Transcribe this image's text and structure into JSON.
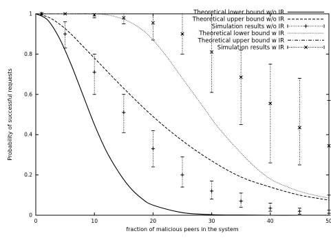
{
  "chart_data": {
    "type": "line",
    "title": "",
    "xlabel": "fraction of malicious peers in the system",
    "ylabel": "Probability of successful requests",
    "xlim": [
      0,
      50
    ],
    "ylim": [
      0,
      1
    ],
    "x_ticks": [
      0,
      10,
      20,
      30,
      40,
      50
    ],
    "x_tick_labels": [
      "0",
      "10",
      "20",
      "30",
      "40",
      "50"
    ],
    "y_ticks": [
      0,
      0.2,
      0.4,
      0.6,
      0.8,
      1
    ],
    "y_tick_labels": [
      "0",
      "0.2",
      "0.4",
      "0.6",
      "0.8",
      "1"
    ],
    "grid": false,
    "legend_position": "top-right",
    "series": [
      {
        "name": "Theoretical lower bound w/o IR",
        "kind": "line",
        "style": "solid",
        "x": [
          0,
          2,
          4,
          6,
          8,
          10,
          12,
          14,
          16,
          18,
          20,
          25,
          30,
          35,
          40,
          45,
          50
        ],
        "y": [
          1,
          0.97,
          0.88,
          0.75,
          0.6,
          0.45,
          0.32,
          0.22,
          0.14,
          0.085,
          0.05,
          0.013,
          0.003,
          0.001,
          0,
          0,
          0
        ]
      },
      {
        "name": "Theoretical upper bound w/o IR",
        "kind": "line",
        "style": "dashed",
        "x": [
          0,
          2,
          4,
          6,
          8,
          10,
          15,
          20,
          25,
          30,
          35,
          40,
          45,
          50
        ],
        "y": [
          1,
          0.985,
          0.95,
          0.9,
          0.84,
          0.78,
          0.63,
          0.49,
          0.37,
          0.27,
          0.19,
          0.14,
          0.1,
          0.075
        ]
      },
      {
        "name": "Simulation results w/o IR",
        "kind": "errorbar",
        "marker": "+",
        "x": [
          1,
          5,
          10,
          15,
          20,
          25,
          30,
          35,
          40,
          45,
          50
        ],
        "y": [
          1.0,
          0.9,
          0.71,
          0.51,
          0.33,
          0.2,
          0.12,
          0.07,
          0.035,
          0.02,
          0.01
        ],
        "y_low": [
          1.0,
          0.83,
          0.6,
          0.41,
          0.24,
          0.14,
          0.08,
          0.04,
          0.02,
          0.005,
          0.0
        ],
        "y_high": [
          1.0,
          0.96,
          0.8,
          0.6,
          0.42,
          0.29,
          0.17,
          0.11,
          0.06,
          0.035,
          0.025
        ]
      },
      {
        "name": "Theoretical lower bound w IR",
        "kind": "line",
        "style": "dotted",
        "x": [
          0,
          5,
          10,
          13,
          16,
          19,
          22,
          25,
          28,
          31,
          34,
          37,
          40,
          43,
          46,
          50
        ],
        "y": [
          1,
          1,
          1,
          0.99,
          0.96,
          0.9,
          0.8,
          0.68,
          0.56,
          0.44,
          0.34,
          0.25,
          0.18,
          0.14,
          0.11,
          0.085
        ]
      },
      {
        "name": "Theoretical upper bound w IR",
        "kind": "line",
        "style": "dash-dot",
        "x": [
          0,
          50
        ],
        "y": [
          1,
          1
        ]
      },
      {
        "name": "Simulation results w IR",
        "kind": "errorbar",
        "marker": "x",
        "x": [
          1,
          5,
          10,
          15,
          20,
          25,
          30,
          35,
          40,
          45,
          50
        ],
        "y": [
          1.0,
          1.0,
          0.995,
          0.98,
          0.955,
          0.9,
          0.81,
          0.685,
          0.555,
          0.435,
          0.345
        ],
        "y_low": [
          1.0,
          1.0,
          0.98,
          0.95,
          0.87,
          0.8,
          0.61,
          0.45,
          0.26,
          0.25,
          0.1
        ],
        "y_high": [
          1.0,
          1.0,
          1.0,
          1.0,
          1.0,
          1.0,
          1.0,
          0.82,
          0.75,
          0.68,
          0.57
        ]
      }
    ]
  }
}
